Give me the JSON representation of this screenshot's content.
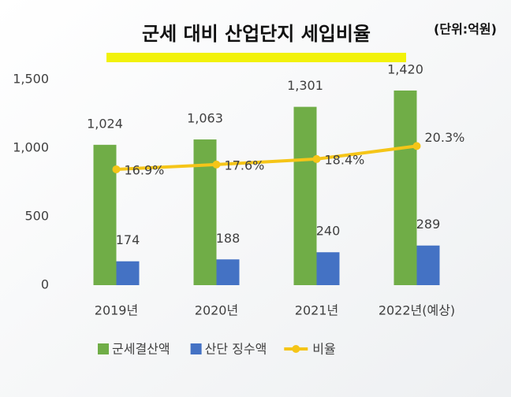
{
  "chart_data": {
    "type": "bar",
    "title": "군세 대비 산업단지 세입비율",
    "subtitle": "(단위:억원)",
    "categories": [
      "2019년",
      "2020년",
      "2021년",
      "2022년(예상)"
    ],
    "series": [
      {
        "name": "군세결산액",
        "type": "bar",
        "color": "#70ad47",
        "values": [
          1024,
          1063,
          1301,
          1420
        ],
        "value_labels": [
          "1,024",
          "1,063",
          "1,301",
          "1,420"
        ]
      },
      {
        "name": "산단 징수액",
        "type": "bar",
        "color": "#4472c4",
        "values": [
          174,
          188,
          240,
          289
        ]
      },
      {
        "name": "비율",
        "type": "line",
        "axis": "y2",
        "color": "#f5c518",
        "values": [
          16.9,
          17.6,
          18.4,
          20.3
        ],
        "value_labels": [
          "16.9%",
          "17.6%",
          "18.4%",
          "20.3%"
        ]
      }
    ],
    "ylim": [
      0,
      1500
    ],
    "yticks": [
      0,
      500,
      {
        "value": 1000,
        "label": "1,000"
      },
      {
        "value": 1500,
        "label": "1,500"
      }
    ],
    "y2lim": [
      0,
      30
    ],
    "legend": "bottom"
  }
}
